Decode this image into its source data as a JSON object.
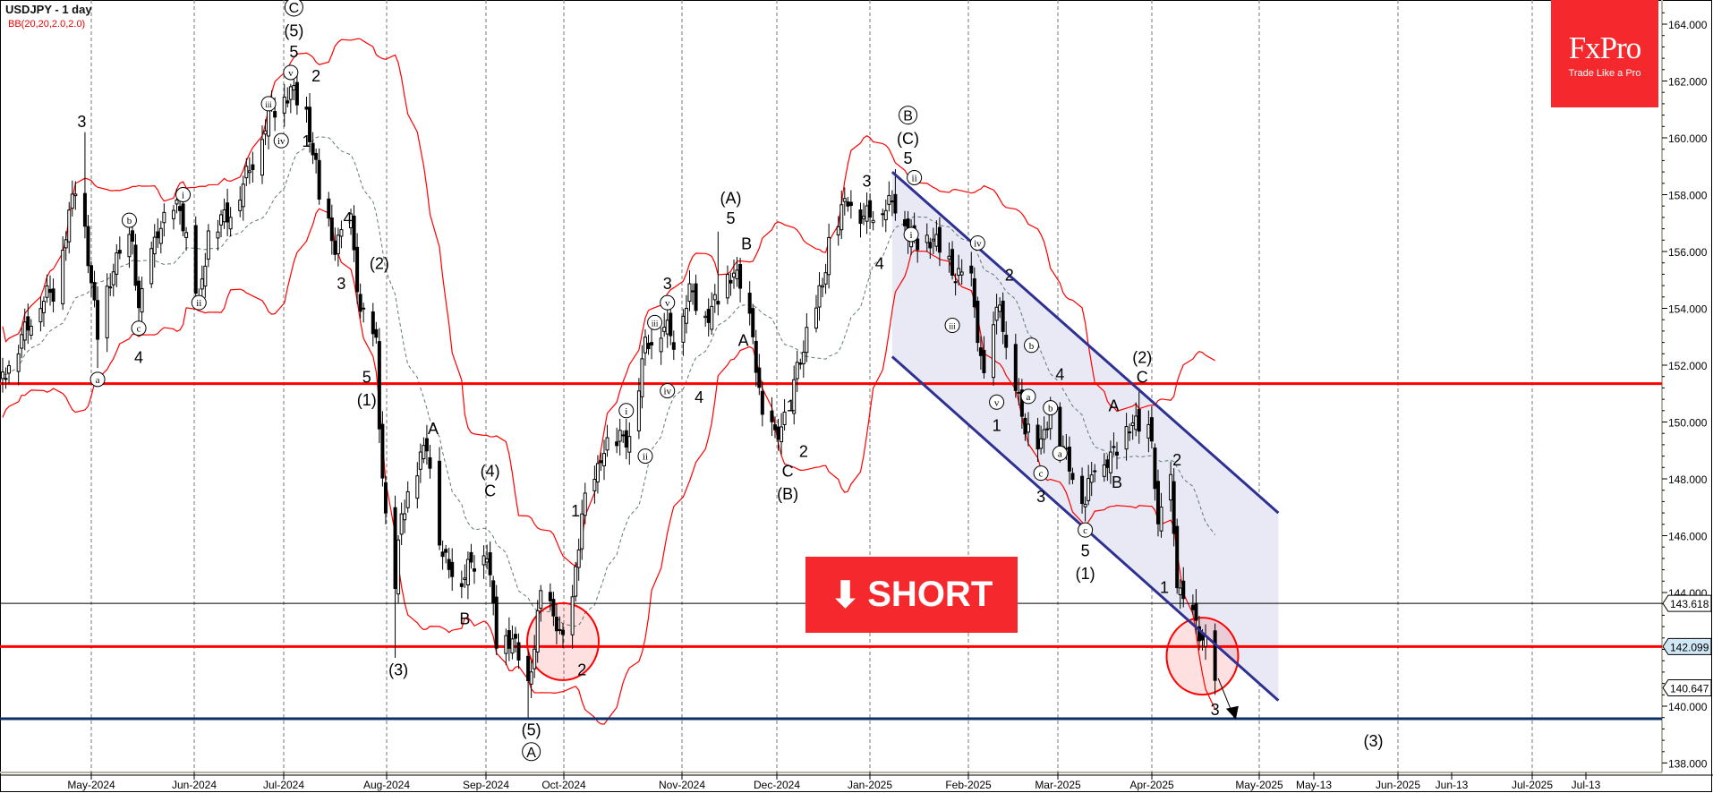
{
  "header": {
    "title": "USDJPY - 1 day",
    "indicator": "BB(20,20,2.0,2.0)"
  },
  "logo": {
    "brand": "FxPro",
    "tagline": "Trade Like a Pro",
    "color": "#f5292d"
  },
  "signal": {
    "label": "SHORT",
    "icon": "arrow-down-icon",
    "color": "#f5292d"
  },
  "chart_data": {
    "type": "candlestick",
    "symbol": "USDJPY",
    "timeframe": "1 day",
    "ylim": [
      137.5,
      164.8
    ],
    "y_ticks": [
      "164.000",
      "162.000",
      "160.000",
      "158.000",
      "156.000",
      "154.000",
      "152.000",
      "150.000",
      "148.000",
      "146.000",
      "144.000",
      "140.000",
      "138.000"
    ],
    "x_ticks": [
      "May-2024",
      "Jun-2024",
      "Jul-2024",
      "Aug-2024",
      "Sep-2024",
      "Oct-2024",
      "Nov-2024",
      "Dec-2024",
      "Jan-2025",
      "Feb-2025",
      "Mar-2025",
      "Apr-2025",
      "May-2025",
      "May-13",
      "Jun-2025",
      "Jun-13",
      "Jul-2025",
      "Jul-13"
    ],
    "grid": "vertical dashed at month ticks",
    "bollinger": {
      "period": 20,
      "deviation": 2.0,
      "band_color": "#ff0000",
      "middle_color": "#5f7a72"
    },
    "closes": [
      [
        "2024-04-03",
        151.6
      ],
      [
        "2024-04-10",
        153.2
      ],
      [
        "2024-04-15",
        154.3
      ],
      [
        "2024-04-19",
        154.6
      ],
      [
        "2024-04-26",
        158.3
      ],
      [
        "2024-04-29",
        156.8
      ],
      [
        "2024-05-03",
        153.0
      ],
      [
        "2024-05-08",
        155.5
      ],
      [
        "2024-05-14",
        156.4
      ],
      [
        "2024-05-16",
        153.9
      ],
      [
        "2024-05-22",
        156.8
      ],
      [
        "2024-05-29",
        157.6
      ],
      [
        "2024-06-04",
        154.1
      ],
      [
        "2024-06-07",
        156.7
      ],
      [
        "2024-06-14",
        157.4
      ],
      [
        "2024-06-20",
        158.9
      ],
      [
        "2024-06-26",
        160.8
      ],
      [
        "2024-07-03",
        161.7
      ],
      [
        "2024-07-08",
        160.8
      ],
      [
        "2024-07-11",
        158.9
      ],
      [
        "2024-07-12",
        157.8
      ],
      [
        "2024-07-17",
        156.2
      ],
      [
        "2024-07-22",
        157.0
      ],
      [
        "2024-07-25",
        153.9
      ],
      [
        "2024-07-30",
        152.7
      ],
      [
        "2024-07-31",
        150.0
      ],
      [
        "2024-08-02",
        146.5
      ],
      [
        "2024-08-05",
        144.2
      ],
      [
        "2024-08-07",
        146.8
      ],
      [
        "2024-08-15",
        149.3
      ],
      [
        "2024-08-20",
        145.2
      ],
      [
        "2024-08-26",
        144.5
      ],
      [
        "2024-08-29",
        145.0
      ],
      [
        "2024-09-03",
        145.5
      ],
      [
        "2024-09-06",
        142.3
      ],
      [
        "2024-09-11",
        142.4
      ],
      [
        "2024-09-16",
        140.6
      ],
      [
        "2024-09-20",
        143.9
      ],
      [
        "2024-09-25",
        143.0
      ],
      [
        "2024-09-27",
        142.2
      ],
      [
        "2024-09-30",
        143.6
      ],
      [
        "2024-10-03",
        146.9
      ],
      [
        "2024-10-08",
        148.2
      ],
      [
        "2024-10-10",
        149.2
      ],
      [
        "2024-10-18",
        149.5
      ],
      [
        "2024-10-23",
        152.7
      ],
      [
        "2024-10-29",
        153.4
      ],
      [
        "2024-11-01",
        152.9
      ],
      [
        "2024-11-06",
        154.6
      ],
      [
        "2024-11-11",
        153.7
      ],
      [
        "2024-11-15",
        154.3
      ],
      [
        "2024-11-20",
        155.4
      ],
      [
        "2024-11-26",
        153.1
      ],
      [
        "2024-11-29",
        150.0
      ],
      [
        "2024-12-03",
        149.6
      ],
      [
        "2024-12-06",
        150.0
      ],
      [
        "2024-12-12",
        152.7
      ],
      [
        "2024-12-18",
        154.8
      ],
      [
        "2024-12-20",
        156.4
      ],
      [
        "2024-12-26",
        157.9
      ],
      [
        "2024-12-31",
        157.2
      ],
      [
        "2025-01-06",
        157.6
      ],
      [
        "2025-01-10",
        157.7
      ],
      [
        "2025-01-15",
        156.5
      ],
      [
        "2025-01-17",
        156.3
      ],
      [
        "2025-01-22",
        156.5
      ],
      [
        "2025-01-24",
        156.0
      ],
      [
        "2025-01-29",
        155.2
      ],
      [
        "2025-02-03",
        154.9
      ],
      [
        "2025-02-07",
        151.4
      ],
      [
        "2025-02-12",
        154.4
      ],
      [
        "2025-02-14",
        152.3
      ],
      [
        "2025-02-20",
        149.9
      ],
      [
        "2025-02-25",
        149.1
      ],
      [
        "2025-02-28",
        150.6
      ],
      [
        "2025-03-04",
        149.0
      ],
      [
        "2025-03-11",
        147.2
      ],
      [
        "2025-03-14",
        148.6
      ],
      [
        "2025-03-19",
        148.7
      ],
      [
        "2025-03-25",
        150.0
      ],
      [
        "2025-03-28",
        149.8
      ],
      [
        "2025-04-01",
        149.6
      ],
      [
        "2025-04-03",
        146.1
      ],
      [
        "2025-04-04",
        146.9
      ],
      [
        "2025-04-07",
        147.8
      ],
      [
        "2025-04-09",
        144.5
      ],
      [
        "2025-04-11",
        143.5
      ],
      [
        "2025-04-14",
        143.1
      ],
      [
        "2025-04-17",
        142.4
      ],
      [
        "2025-04-18",
        142.1
      ],
      [
        "2025-04-21",
        140.8
      ]
    ],
    "extremes": [
      [
        "2024-04-29",
        160.2,
        "high"
      ],
      [
        "2024-05-03",
        151.9,
        "low"
      ],
      [
        "2024-07-03",
        161.9,
        "high"
      ],
      [
        "2024-08-05",
        141.7,
        "low"
      ],
      [
        "2024-09-16",
        139.6,
        "low"
      ],
      [
        "2024-11-15",
        156.7,
        "high"
      ],
      [
        "2025-01-10",
        158.9,
        "high"
      ],
      [
        "2025-03-11",
        146.5,
        "low"
      ],
      [
        "2025-03-28",
        151.2,
        "high"
      ],
      [
        "2025-04-21",
        140.4,
        "low"
      ]
    ],
    "levels": [
      {
        "price": 151.35,
        "color": "#ff0000",
        "kind": "resistance"
      },
      {
        "price": 142.099,
        "color": "#ff0000",
        "kind": "support",
        "label": "142.099"
      },
      {
        "price": 143.618,
        "color": "#000000",
        "kind": "price",
        "label": "143.618"
      },
      {
        "price": 139.56,
        "color": "#0a2f66",
        "kind": "target"
      }
    ],
    "price_labels": [
      {
        "text": "140.647",
        "price": 140.647
      }
    ],
    "channel": {
      "color": "#2e3192",
      "fill": "#e8e9f4",
      "upper": [
        [
          "2025-01-09",
          158.8
        ],
        [
          "2025-05-11",
          146.8
        ]
      ],
      "lower": [
        [
          "2025-01-09",
          152.3
        ],
        [
          "2025-05-11",
          140.2
        ]
      ]
    },
    "highlight_circles": [
      {
        "date": "2024-09-27",
        "price": 142.27
      },
      {
        "date": "2025-04-17",
        "price": 141.76
      }
    ],
    "projection_arrow": [
      [
        "2025-04-22",
        140.98
      ],
      [
        "2025-04-27",
        139.6
      ]
    ],
    "wave_labels": [
      [
        "3",
        "2024-04-28",
        160.6,
        0
      ],
      [
        "a",
        "2024-05-03",
        151.5,
        1
      ],
      [
        "b",
        "2024-05-13",
        157.1,
        1
      ],
      [
        "c",
        "2024-05-16",
        153.3,
        1
      ],
      [
        "4",
        "2024-05-16",
        152.3,
        0
      ],
      [
        "i",
        "2024-05-30",
        158.0,
        1
      ],
      [
        "ii",
        "2024-06-04",
        154.2,
        1
      ],
      [
        "iii",
        "2024-06-26",
        161.2,
        1
      ],
      [
        "iv",
        "2024-06-30",
        159.9,
        1
      ],
      [
        "v",
        "2024-07-03",
        162.3,
        1
      ],
      [
        "5",
        "2024-07-04",
        163.05,
        0
      ],
      [
        "(5)",
        "2024-07-04",
        163.8,
        0
      ],
      [
        "C",
        "2024-07-04",
        164.6,
        2
      ],
      [
        "2",
        "2024-07-11",
        162.2,
        0
      ],
      [
        "1",
        "2024-07-08",
        159.9,
        0
      ],
      [
        "4",
        "2024-07-21",
        157.2,
        0
      ],
      [
        "3",
        "2024-07-19",
        154.9,
        0
      ],
      [
        "(2)",
        "2024-07-31",
        155.6,
        0
      ],
      [
        "5",
        "2024-07-27",
        151.6,
        0
      ],
      [
        "(1)",
        "2024-07-27",
        150.8,
        0
      ],
      [
        "(3)",
        "2024-08-06",
        141.3,
        0
      ],
      [
        "A",
        "2024-08-17",
        149.8,
        0
      ],
      [
        "(4)",
        "2024-09-04",
        148.3,
        0
      ],
      [
        "C",
        "2024-09-04",
        147.6,
        0
      ],
      [
        "B",
        "2024-08-27",
        143.1,
        0
      ],
      [
        "(5)",
        "2024-09-17",
        139.2,
        0
      ],
      [
        "A",
        "2024-09-17",
        138.4,
        2
      ],
      [
        "2",
        "2024-10-03",
        141.3,
        0
      ],
      [
        "1",
        "2024-10-01",
        146.9,
        0
      ],
      [
        "i",
        "2024-10-17",
        150.4,
        1
      ],
      [
        "ii",
        "2024-10-23",
        148.8,
        1
      ],
      [
        "iii",
        "2024-10-26",
        153.5,
        1
      ],
      [
        "iv",
        "2024-10-30",
        151.1,
        1
      ],
      [
        "v",
        "2024-10-30",
        154.2,
        1
      ],
      [
        "3",
        "2024-10-30",
        154.9,
        0
      ],
      [
        "4",
        "2024-11-09",
        150.9,
        0
      ],
      [
        "(A)",
        "2024-11-19",
        157.9,
        0
      ],
      [
        "5",
        "2024-11-19",
        157.2,
        0
      ],
      [
        "B",
        "2024-11-24",
        156.3,
        0
      ],
      [
        "A",
        "2024-11-23",
        152.9,
        0
      ],
      [
        "1",
        "2024-12-08",
        150.6,
        0
      ],
      [
        "2",
        "2024-12-12",
        149.0,
        0
      ],
      [
        "C",
        "2024-12-07",
        148.3,
        0
      ],
      [
        "(B)",
        "2024-12-07",
        147.5,
        0
      ],
      [
        "3",
        "2025-01-01",
        158.5,
        0
      ],
      [
        "4",
        "2025-01-05",
        155.6,
        0
      ],
      [
        "B",
        "2025-01-14",
        160.8,
        2
      ],
      [
        "(C)",
        "2025-01-14",
        160.0,
        0
      ],
      [
        "5",
        "2025-01-14",
        159.3,
        0
      ],
      [
        "ii",
        "2025-01-16",
        158.6,
        1
      ],
      [
        "i",
        "2025-01-15",
        156.6,
        1
      ],
      [
        "iv",
        "2025-02-05",
        156.3,
        1
      ],
      [
        "iii",
        "2025-01-28",
        153.4,
        1
      ],
      [
        "2",
        "2025-02-15",
        155.2,
        0
      ],
      [
        "b",
        "2025-02-22",
        152.7,
        1
      ],
      [
        "a",
        "2025-02-21",
        150.9,
        1
      ],
      [
        "v",
        "2025-02-11",
        150.7,
        1
      ],
      [
        "1",
        "2025-02-11",
        149.9,
        0
      ],
      [
        "4",
        "2025-03-03",
        151.7,
        0
      ],
      [
        "b",
        "2025-02-28",
        150.5,
        1
      ],
      [
        "a",
        "2025-03-03",
        148.9,
        1
      ],
      [
        "c",
        "2025-02-25",
        148.2,
        1
      ],
      [
        "3",
        "2025-02-25",
        147.4,
        0
      ],
      [
        "c",
        "2025-03-11",
        146.2,
        1
      ],
      [
        "5",
        "2025-03-11",
        145.5,
        0
      ],
      [
        "(1)",
        "2025-03-11",
        144.7,
        0
      ],
      [
        "A",
        "2025-03-20",
        150.6,
        0
      ],
      [
        "B",
        "2025-03-21",
        147.9,
        0
      ],
      [
        "(2)",
        "2025-03-29",
        152.3,
        0
      ],
      [
        "C",
        "2025-03-29",
        151.6,
        0
      ],
      [
        "2",
        "2025-04-09",
        148.7,
        0
      ],
      [
        "1",
        "2025-04-05",
        144.2,
        0
      ],
      [
        "3",
        "2025-04-21",
        139.9,
        0
      ],
      [
        "(3)",
        "2025-06-10",
        138.8,
        0
      ]
    ]
  }
}
